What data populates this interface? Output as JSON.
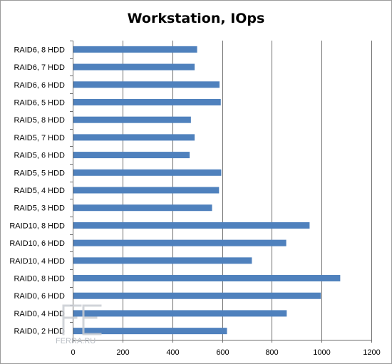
{
  "chart_data": {
    "type": "bar",
    "orientation": "horizontal",
    "title": "Workstation, IOps",
    "categories": [
      "RAID6, 8 HDD",
      "RAID6, 7 HDD",
      "RAID6, 6 HDD",
      "RAID6, 5 HDD",
      "RAID5, 8 HDD",
      "RAID5, 7 HDD",
      "RAID5, 6 HDD",
      "RAID5, 5 HDD",
      "RAID5, 4 HDD",
      "RAID5, 3 HDD",
      "RAID10, 8 HDD",
      "RAID10, 6 HDD",
      "RAID10, 4 HDD",
      "RAID0, 8 HDD",
      "RAID0, 6 HDD",
      "RAID0, 4 HDD",
      "RAID0, 2 HDD"
    ],
    "values": [
      500,
      490,
      590,
      595,
      475,
      490,
      470,
      597,
      588,
      560,
      952,
      858,
      720,
      1075,
      997,
      860,
      620
    ],
    "xlim": [
      0,
      1200
    ],
    "xticks": [
      "0",
      "200",
      "400",
      "600",
      "800",
      "1000",
      "1200"
    ],
    "grid": "vertical",
    "legend": "none",
    "bar_color": "#4f81bd"
  },
  "watermark": {
    "text": "FERRA.RU",
    "logo_icon": "ferra-logo-icon"
  }
}
